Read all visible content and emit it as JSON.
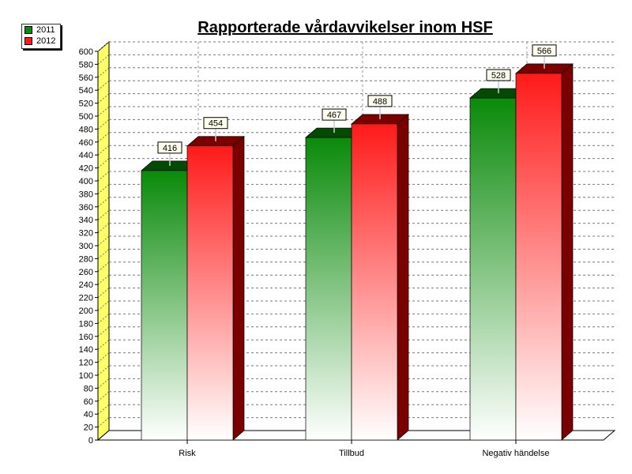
{
  "chart_data": {
    "type": "bar",
    "title": "Rapporterade vårdavvikelser inom HSF",
    "categories": [
      "Risk",
      "Tillbud",
      "Negativ händelse"
    ],
    "series": [
      {
        "name": "2011",
        "values": [
          416,
          467,
          528
        ],
        "color": "#0a8a0a",
        "side_color": "#044a04"
      },
      {
        "name": "2012",
        "values": [
          454,
          488,
          566
        ],
        "color": "#ff1a1a",
        "side_color": "#7a0000"
      }
    ],
    "ylim": [
      0,
      600
    ],
    "ytick_step": 20,
    "xlabel": "",
    "ylabel": "",
    "grid": true,
    "legend_position": "top-left",
    "wall_color": "#ffff66",
    "data_labels": true
  }
}
